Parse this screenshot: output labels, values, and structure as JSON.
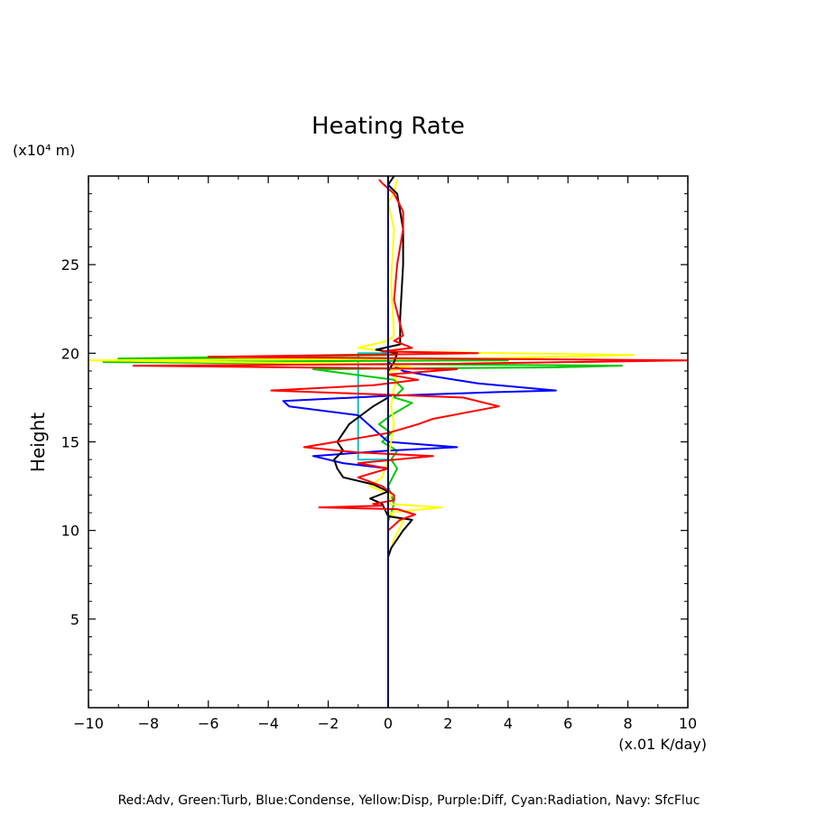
{
  "chart_data": {
    "type": "line",
    "title": "Heating Rate",
    "ylabel": "Height",
    "y_unit": "(x10⁴ m)",
    "x_unit": "(x.01 K/day)",
    "legend": "Red:Adv, Green:Turb, Blue:Condense, Yellow:Disp, Purple:Diff, Cyan:Radiation, Navy: SfcFluc",
    "xlim": [
      -10,
      10
    ],
    "ylim": [
      0,
      30
    ],
    "x_ticks": [
      -10,
      -8,
      -6,
      -4,
      -2,
      0,
      2,
      4,
      6,
      8,
      10
    ],
    "y_ticks": [
      5,
      10,
      15,
      20,
      25
    ],
    "series": [
      {
        "color": "#00c8c8",
        "points": [
          [
            0,
            8.5
          ],
          [
            0,
            14
          ],
          [
            -1,
            14
          ],
          [
            -1,
            20
          ],
          [
            0,
            20
          ],
          [
            0,
            30
          ]
        ]
      },
      {
        "color": "#00c800",
        "points": [
          [
            0,
            8.5
          ],
          [
            0,
            10.5
          ],
          [
            0.2,
            11.5
          ],
          [
            0,
            12.5
          ],
          [
            0.3,
            13.5
          ],
          [
            0.1,
            14
          ],
          [
            0.3,
            14.5
          ],
          [
            -0.2,
            15
          ],
          [
            0.1,
            15.5
          ],
          [
            -0.3,
            16
          ],
          [
            0.1,
            16.5
          ],
          [
            0.8,
            17.2
          ],
          [
            0.2,
            17.5
          ],
          [
            0.5,
            18
          ],
          [
            0.2,
            18.5
          ],
          [
            -2.5,
            19.1
          ],
          [
            5.5,
            19.2
          ],
          [
            7.8,
            19.3
          ],
          [
            -9.5,
            19.5
          ],
          [
            4,
            19.6
          ],
          [
            -9,
            19.7
          ],
          [
            0.3,
            19.9
          ],
          [
            0,
            20.2
          ],
          [
            0,
            30
          ]
        ]
      },
      {
        "color": "#0000ff",
        "points": [
          [
            0,
            8.5
          ],
          [
            0,
            13.5
          ],
          [
            -1.5,
            13.8
          ],
          [
            -2.5,
            14.2
          ],
          [
            0,
            14.5
          ],
          [
            2.3,
            14.7
          ],
          [
            0,
            15
          ],
          [
            -1,
            16.5
          ],
          [
            -3.3,
            17
          ],
          [
            -3.5,
            17.3
          ],
          [
            0,
            17.6
          ],
          [
            3.5,
            17.8
          ],
          [
            5.6,
            17.9
          ],
          [
            3,
            18.3
          ],
          [
            1.5,
            18.7
          ],
          [
            0.5,
            19
          ],
          [
            0,
            19.5
          ],
          [
            0,
            30
          ]
        ]
      },
      {
        "color": "#ffff00",
        "points": [
          [
            0,
            8.5
          ],
          [
            0.2,
            9.5
          ],
          [
            0.5,
            10.5
          ],
          [
            0,
            11
          ],
          [
            1.8,
            11.3
          ],
          [
            0,
            11.5
          ],
          [
            0.1,
            12
          ],
          [
            -0.6,
            12.5
          ],
          [
            -0.2,
            13
          ],
          [
            0,
            14
          ],
          [
            0.1,
            15
          ],
          [
            0.2,
            16
          ],
          [
            0.1,
            17
          ],
          [
            0.2,
            18
          ],
          [
            0.3,
            18.5
          ],
          [
            0,
            19
          ],
          [
            0.8,
            19.2
          ],
          [
            -0.5,
            19.4
          ],
          [
            -10,
            19.6
          ],
          [
            3,
            19.7
          ],
          [
            8.2,
            19.9
          ],
          [
            0,
            20.1
          ],
          [
            -1,
            20.3
          ],
          [
            0,
            20.7
          ],
          [
            0.2,
            21
          ],
          [
            0.1,
            24
          ],
          [
            0.2,
            27
          ],
          [
            0,
            28.5
          ],
          [
            0.2,
            29
          ],
          [
            0.3,
            29.8
          ]
        ]
      },
      {
        "color": "#000000",
        "points": [
          [
            0,
            8.5
          ],
          [
            0.1,
            9
          ],
          [
            0.5,
            10
          ],
          [
            0.8,
            10.6
          ],
          [
            0,
            10.8
          ],
          [
            -0.2,
            11.5
          ],
          [
            -0.6,
            11.8
          ],
          [
            0,
            12.2
          ],
          [
            -0.5,
            12.6
          ],
          [
            -1.5,
            13
          ],
          [
            -1.7,
            13.5
          ],
          [
            -1.8,
            14
          ],
          [
            -1.5,
            14.5
          ],
          [
            -1.7,
            15
          ],
          [
            -1.5,
            15.5
          ],
          [
            -1.3,
            16
          ],
          [
            -0.9,
            16.5
          ],
          [
            -0.5,
            17
          ],
          [
            0,
            17.5
          ],
          [
            0,
            19
          ],
          [
            0.2,
            19.5
          ],
          [
            0.3,
            20
          ],
          [
            -0.4,
            20.2
          ],
          [
            0.4,
            20.5
          ],
          [
            0.4,
            22
          ],
          [
            0.5,
            25
          ],
          [
            0.5,
            27
          ],
          [
            0.3,
            29
          ],
          [
            0,
            29.5
          ],
          [
            0.2,
            30
          ]
        ]
      },
      {
        "color": "#ff0000",
        "points": [
          [
            0,
            8.5
          ],
          [
            0,
            10
          ],
          [
            0.4,
            10.6
          ],
          [
            0.9,
            10.9
          ],
          [
            0.3,
            11.2
          ],
          [
            -2.3,
            11.3
          ],
          [
            -0.2,
            11.4
          ],
          [
            -0.5,
            11.5
          ],
          [
            0.2,
            11.7
          ],
          [
            0.2,
            12
          ],
          [
            -0.2,
            12.5
          ],
          [
            -1,
            13
          ],
          [
            0,
            13.5
          ],
          [
            -1,
            13.8
          ],
          [
            1.5,
            14.2
          ],
          [
            -1,
            14.4
          ],
          [
            -2.8,
            14.7
          ],
          [
            0,
            15.5
          ],
          [
            1,
            16
          ],
          [
            1.5,
            16.3
          ],
          [
            3.7,
            17
          ],
          [
            2.5,
            17.5
          ],
          [
            -3.9,
            17.9
          ],
          [
            -0.5,
            18.2
          ],
          [
            1,
            18.5
          ],
          [
            0,
            18.8
          ],
          [
            2.3,
            19.1
          ],
          [
            -8.5,
            19.3
          ],
          [
            2,
            19.4
          ],
          [
            10,
            19.6
          ],
          [
            -6,
            19.8
          ],
          [
            3,
            20
          ],
          [
            -0.2,
            20.1
          ],
          [
            0.8,
            20.3
          ],
          [
            0.2,
            20.7
          ],
          [
            0.5,
            21
          ],
          [
            0.2,
            23
          ],
          [
            0.3,
            25
          ],
          [
            0.5,
            27
          ],
          [
            0.5,
            28
          ],
          [
            0.2,
            29
          ],
          [
            -0.2,
            29.6
          ],
          [
            -0.3,
            29.8
          ]
        ]
      },
      {
        "color": "#000080",
        "points": [
          [
            0,
            0
          ],
          [
            0,
            30
          ]
        ]
      }
    ]
  }
}
